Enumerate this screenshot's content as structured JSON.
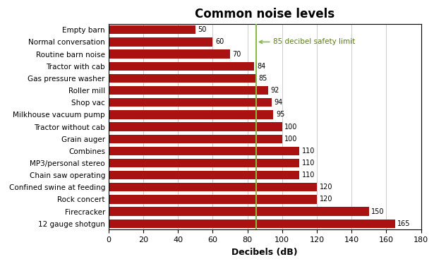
{
  "chart_data": {
    "type": "bar",
    "orientation": "horizontal",
    "title": "Common noise levels",
    "xlabel": "Decibels (dB)",
    "categories": [
      "Empty barn",
      "Normal conversation",
      "Routine barn noise",
      "Tractor with cab",
      "Gas pressure washer",
      "Roller mill",
      "Shop vac",
      "Milkhouse vacuum pump",
      "Tractor without cab",
      "Grain auger",
      "Combines",
      "MP3/personal stereo",
      "Chain saw operating",
      "Confined swine at feeding",
      "Rock concert",
      "Firecracker",
      "12 gauge shotgun"
    ],
    "values": [
      50,
      60,
      70,
      84,
      85,
      92,
      94,
      95,
      100,
      100,
      110,
      110,
      110,
      120,
      120,
      150,
      165
    ],
    "color": "#aa1111",
    "xlim": [
      0,
      180
    ],
    "xticks": [
      0,
      20,
      40,
      60,
      80,
      100,
      120,
      140,
      160,
      180
    ],
    "grid": true,
    "data_labels": true,
    "reference_line": {
      "x": 85,
      "label": "85 decibel safety limit",
      "color": "#8ab84a"
    }
  }
}
